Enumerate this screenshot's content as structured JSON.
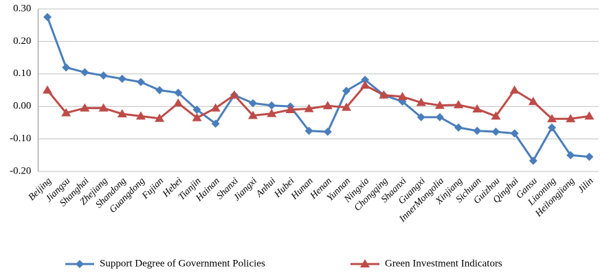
{
  "chart_data": {
    "type": "line",
    "categories": [
      "Beijing",
      "Jiangsu",
      "Shanghai",
      "Zhejiang",
      "Shandong",
      "Guangdong",
      "Fujian",
      "Hebei",
      "Tianjin",
      "Hainan",
      "Shanxi",
      "Jiangxi",
      "Anhui",
      "Hubei",
      "Hunan",
      "Henan",
      "Yunnan",
      "Ningxia",
      "Chongqing",
      "Shaanxi",
      "Guangxi",
      "InnerMongolia",
      "Xinjiang",
      "Sichuan",
      "Guizhou",
      "Qinghai",
      "Gansu",
      "Liaoning",
      "Heilongjiang",
      "Jilin"
    ],
    "series": [
      {
        "name": "Support Degree of Government Policies",
        "color": "#4a7ebb",
        "marker": "diamond",
        "values": [
          0.275,
          0.12,
          0.105,
          0.095,
          0.085,
          0.075,
          0.05,
          0.042,
          -0.01,
          -0.053,
          0.035,
          0.01,
          0.003,
          0.0,
          -0.075,
          -0.078,
          0.048,
          0.082,
          0.035,
          0.015,
          -0.033,
          -0.033,
          -0.065,
          -0.075,
          -0.078,
          -0.083,
          -0.167,
          -0.065,
          -0.15,
          -0.155
        ]
      },
      {
        "name": "Green Investment Indicators",
        "color": "#be4b48",
        "marker": "triangle",
        "values": [
          0.05,
          -0.02,
          -0.005,
          -0.005,
          -0.023,
          -0.03,
          -0.037,
          0.01,
          -0.035,
          -0.005,
          0.035,
          -0.028,
          -0.022,
          -0.01,
          -0.007,
          0.002,
          -0.003,
          0.065,
          0.035,
          0.03,
          0.012,
          0.003,
          0.005,
          -0.008,
          -0.03,
          0.05,
          0.015,
          -0.038,
          -0.038,
          -0.03
        ]
      }
    ],
    "ylim": [
      -0.2,
      0.3
    ],
    "yticks": [
      {
        "value": -0.2,
        "label": "-0.20"
      },
      {
        "value": -0.1,
        "label": "-0.10"
      },
      {
        "value": 0,
        "label": "0.00"
      },
      {
        "value": 0.1,
        "label": "0.10"
      },
      {
        "value": 0.2,
        "label": "0.20"
      },
      {
        "value": 0.3,
        "label": "0.30"
      }
    ],
    "grid": true,
    "legend": "bottom"
  }
}
